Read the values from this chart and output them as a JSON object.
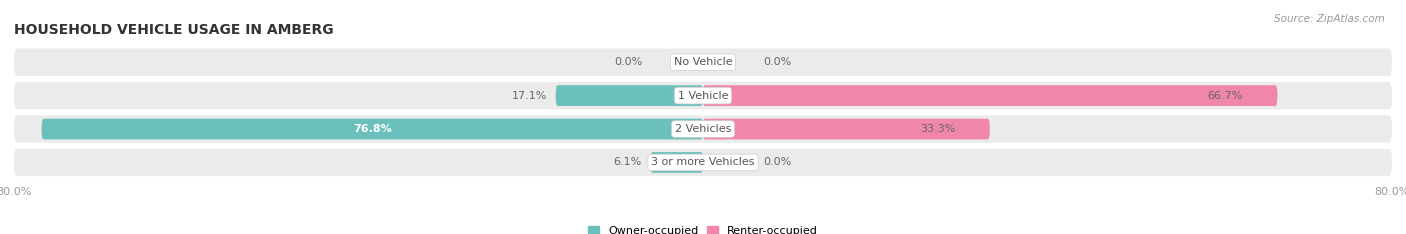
{
  "title": "HOUSEHOLD VEHICLE USAGE IN AMBERG",
  "source_text": "Source: ZipAtlas.com",
  "categories": [
    "No Vehicle",
    "1 Vehicle",
    "2 Vehicles",
    "3 or more Vehicles"
  ],
  "owner_values": [
    0.0,
    17.1,
    76.8,
    6.1
  ],
  "renter_values": [
    0.0,
    66.7,
    33.3,
    0.0
  ],
  "owner_color": "#6BBFBD",
  "renter_color": "#F087A8",
  "bar_bg_color": "#EBEBEB",
  "bar_bg_outer_color": "#E0E0E0",
  "bar_height": 0.62,
  "bg_bar_height": 0.82,
  "xlim": [
    -80,
    80
  ],
  "title_fontsize": 10,
  "val_fontsize": 8,
  "category_fontsize": 8,
  "legend_fontsize": 8,
  "source_fontsize": 7.5,
  "background_color": "#FFFFFF",
  "text_color_dark": "#666666",
  "text_color_white": "#FFFFFF"
}
